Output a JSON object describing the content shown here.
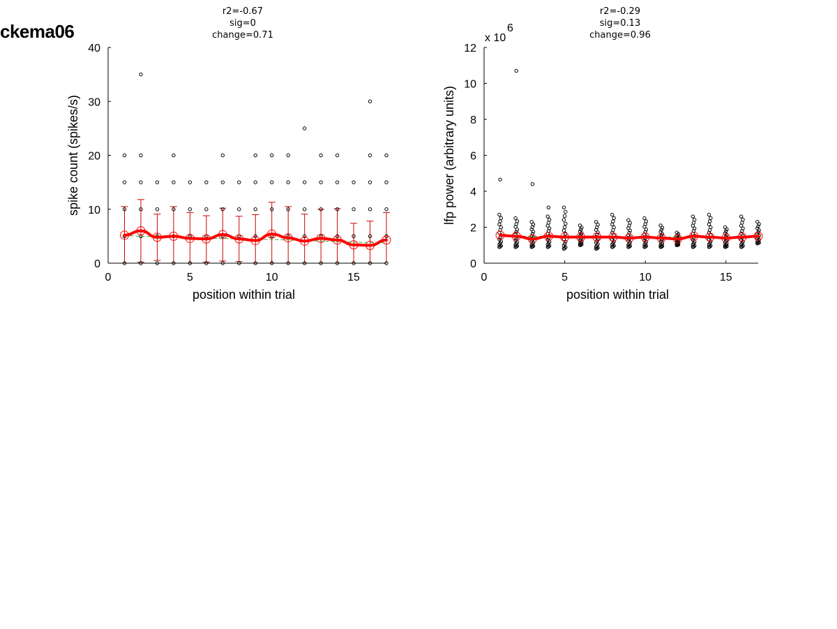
{
  "figure": {
    "title": "ckema06"
  },
  "colors": {
    "axis": "#000000",
    "points": "#000000",
    "mean_line": "#ff0000",
    "error_bars": "#cc0000",
    "fit_line": "#33aa33"
  },
  "chart_data": [
    {
      "type": "scatter",
      "name": "spikes",
      "stats": [
        "r2=-0.67",
        "sig=0",
        "change=0.71"
      ],
      "xlabel": "position within trial",
      "ylabel": "spike count (spikes/s)",
      "xlim": [
        0,
        17
      ],
      "ylim": [
        0,
        40
      ],
      "xticks": [
        0,
        5,
        10,
        15
      ],
      "yticks": [
        0,
        10,
        20,
        30,
        40
      ],
      "multiplier": "",
      "points": {
        "1": [
          0,
          5,
          10,
          15,
          20
        ],
        "2": [
          0,
          5,
          10,
          15,
          20,
          35
        ],
        "3": [
          0,
          5,
          10,
          15
        ],
        "4": [
          0,
          5,
          10,
          15,
          20
        ],
        "5": [
          0,
          5,
          10,
          15
        ],
        "6": [
          0,
          5,
          10,
          15
        ],
        "7": [
          0,
          5,
          10,
          15,
          20
        ],
        "8": [
          0,
          5,
          10,
          15
        ],
        "9": [
          0,
          5,
          10,
          15,
          20
        ],
        "10": [
          0,
          5,
          10,
          15,
          20
        ],
        "11": [
          0,
          5,
          10,
          15,
          20
        ],
        "12": [
          0,
          5,
          10,
          15,
          25
        ],
        "13": [
          0,
          5,
          10,
          15,
          20
        ],
        "14": [
          0,
          5,
          10,
          15,
          20
        ],
        "15": [
          0,
          5,
          10,
          15
        ],
        "16": [
          0,
          5,
          10,
          15,
          20,
          30
        ],
        "17": [
          0,
          5,
          10,
          15,
          20
        ]
      },
      "means": [
        5.2,
        6.0,
        4.8,
        5.0,
        4.6,
        4.5,
        5.3,
        4.5,
        4.2,
        5.4,
        4.7,
        4.1,
        4.6,
        4.3,
        3.4,
        3.3,
        4.3
      ],
      "sd": [
        5.3,
        5.8,
        4.3,
        5.5,
        4.8,
        4.3,
        4.9,
        4.2,
        4.8,
        5.9,
        5.8,
        5.0,
        5.4,
        5.8,
        4.0,
        4.5,
        5.1
      ],
      "fit": [
        5.1,
        5.0,
        4.9,
        4.8,
        4.7,
        4.6,
        4.6,
        4.5,
        4.4,
        4.4,
        4.3,
        4.2,
        4.1,
        4.0,
        3.9,
        3.8,
        3.8
      ]
    },
    {
      "type": "scatter",
      "name": "lfp",
      "stats": [
        "r2=-0.29",
        "sig=0.13",
        "change=0.96"
      ],
      "xlabel": "position within trial",
      "ylabel": "lfp power (arbitrary units)",
      "xlim": [
        0,
        17
      ],
      "ylim": [
        0,
        12
      ],
      "xticks": [
        0,
        5,
        10,
        15
      ],
      "yticks": [
        0,
        2,
        4,
        6,
        8,
        10,
        12
      ],
      "multiplier": "x 10",
      "multiplier_exp": "6",
      "outliers": [
        [
          1,
          4.65
        ],
        [
          2,
          10.7
        ],
        [
          3,
          4.4
        ],
        [
          4,
          3.1
        ]
      ],
      "points_range": {
        "1": [
          0.9,
          2.7
        ],
        "2": [
          0.9,
          2.5
        ],
        "3": [
          0.9,
          2.3
        ],
        "4": [
          0.9,
          2.6
        ],
        "5": [
          0.8,
          3.1
        ],
        "6": [
          1.0,
          2.1
        ],
        "7": [
          0.8,
          2.3
        ],
        "8": [
          0.9,
          2.7
        ],
        "9": [
          0.9,
          2.4
        ],
        "10": [
          0.9,
          2.5
        ],
        "11": [
          0.9,
          2.1
        ],
        "12": [
          1.0,
          1.7
        ],
        "13": [
          0.9,
          2.6
        ],
        "14": [
          0.9,
          2.7
        ],
        "15": [
          0.9,
          2.0
        ],
        "16": [
          0.9,
          2.6
        ],
        "17": [
          1.1,
          2.3
        ]
      },
      "means": [
        1.55,
        1.5,
        1.35,
        1.5,
        1.45,
        1.45,
        1.45,
        1.45,
        1.4,
        1.45,
        1.4,
        1.35,
        1.5,
        1.45,
        1.4,
        1.45,
        1.5
      ],
      "fit": [
        1.5,
        1.5,
        1.49,
        1.49,
        1.48,
        1.48,
        1.47,
        1.47,
        1.46,
        1.46,
        1.45,
        1.45,
        1.45,
        1.44,
        1.44,
        1.43,
        1.43
      ]
    }
  ]
}
